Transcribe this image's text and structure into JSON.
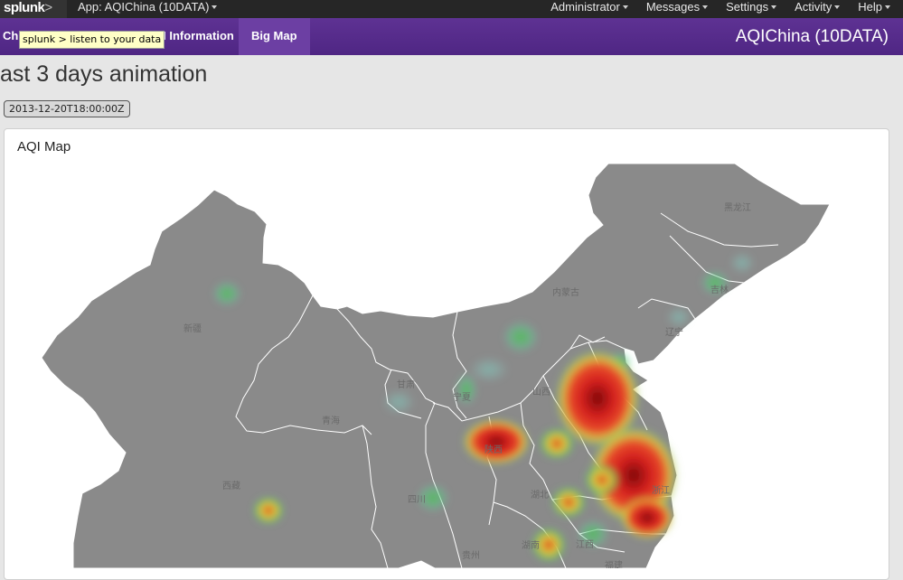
{
  "topbar": {
    "logo_text": "splunk",
    "logo_mark": ">",
    "app_menu": "App: AQIChina (10DATA)",
    "menus": [
      "Administrator",
      "Messages",
      "Settings",
      "Activity",
      "Help"
    ]
  },
  "nav": {
    "item_first_partial": "Chi",
    "item_info_partial": "QI Information",
    "item_bigmap": "Big Map",
    "app_title": "AQIChina (10DATA)"
  },
  "tooltip": "splunk > listen to your data",
  "page": {
    "title": "ast 3 days animation",
    "timestamp": "2013-12-20T18:00:00Z"
  },
  "panel": {
    "title": "AQI Map"
  },
  "map_labels": [
    "黑龙江",
    "吉林",
    "内蒙古",
    "辽宁",
    "新疆",
    "甘肃",
    "宁夏",
    "山西",
    "青海",
    "西藏",
    "四川",
    "湖北",
    "江西",
    "湖南",
    "贵州",
    "浙江",
    "福建",
    "陕西"
  ],
  "colors": {
    "navbar": "#5c2f91",
    "land": "#8a8a8a",
    "heat_high": "#b01010",
    "heat_mid": "#e8d030",
    "heat_low": "#3cbc5c"
  }
}
